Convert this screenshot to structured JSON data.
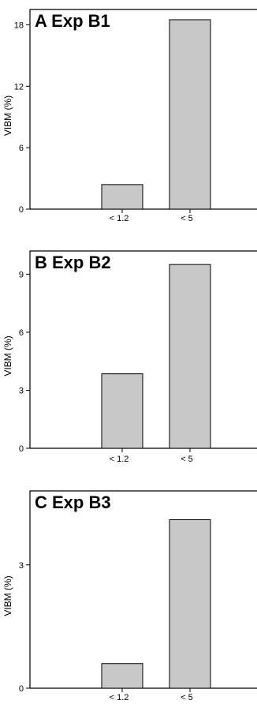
{
  "chart_data": [
    {
      "type": "bar",
      "title": "A  Exp B1",
      "ylabel": "VIBM (%)",
      "xlabel": "",
      "categories": [
        "< 1.2",
        "< 5"
      ],
      "values": [
        2.4,
        18.5
      ],
      "ylim": [
        0,
        19.5
      ],
      "yticks": [
        0,
        6,
        12,
        18
      ],
      "colors": {
        "bar_fill": "#c8c8c8",
        "bar_stroke": "#000000"
      }
    },
    {
      "type": "bar",
      "title": "B  Exp B2",
      "ylabel": "VIBM (%)",
      "xlabel": "",
      "categories": [
        "< 1.2",
        "< 5"
      ],
      "values": [
        3.85,
        9.5
      ],
      "ylim": [
        0,
        10.2
      ],
      "yticks": [
        0,
        3,
        6,
        9
      ],
      "colors": {
        "bar_fill": "#c8c8c8",
        "bar_stroke": "#000000"
      }
    },
    {
      "type": "bar",
      "title": "C  Exp B3",
      "ylabel": "VIBM (%)",
      "xlabel": "",
      "categories": [
        "< 1.2",
        "< 5"
      ],
      "values": [
        0.6,
        4.1
      ],
      "ylim": [
        0,
        4.8
      ],
      "yticks": [
        0,
        3
      ],
      "colors": {
        "bar_fill": "#c8c8c8",
        "bar_stroke": "#000000"
      }
    }
  ]
}
